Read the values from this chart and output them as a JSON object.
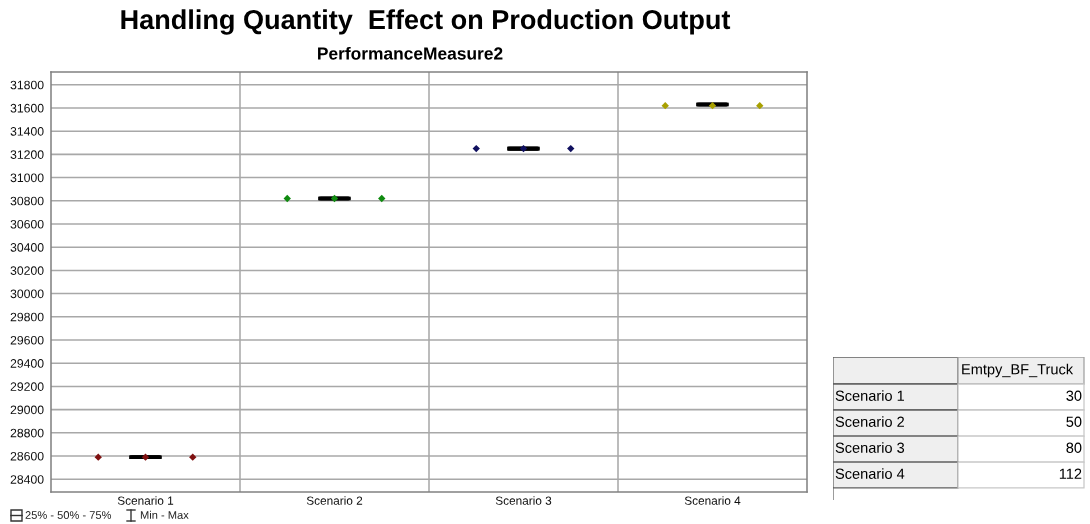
{
  "chart_data": [
    {
      "type": "box",
      "title": "Handling Quantity  Effect on Production Output",
      "subtitle": "PerformanceMeasure2",
      "categories": [
        "Scenario 1",
        "Scenario 2",
        "Scenario 3",
        "Scenario 4"
      ],
      "series": [
        {
          "type": "box",
          "color": "#000000",
          "boxes": [
            {
              "low": 28590,
              "q1": 28590,
              "median": 28590,
              "q3": 28590,
              "high": 28590
            },
            {
              "low": 30820,
              "q1": 30820,
              "median": 30820,
              "q3": 30820,
              "high": 30820
            },
            {
              "low": 31250,
              "q1": 31250,
              "median": 31250,
              "q3": 31250,
              "high": 31250
            },
            {
              "low": 31630,
              "q1": 31630,
              "median": 31630,
              "q3": 31630,
              "high": 31630
            }
          ]
        },
        {
          "type": "scatter",
          "values": [
            28590,
            30820,
            31250,
            31620
          ],
          "colors": [
            "#7f1010",
            "#0f8a0f",
            "#10105f",
            "#a8a000"
          ]
        },
        {
          "type": "scatter",
          "values": [
            28590,
            30820,
            31250,
            31620
          ],
          "colors": [
            "#7f1010",
            "#0f8a0f",
            "#10105f",
            "#a8a000"
          ]
        },
        {
          "type": "scatter",
          "values": [
            28590,
            30820,
            31250,
            31620
          ],
          "colors": [
            "#7f1010",
            "#0f8a0f",
            "#10105f",
            "#a8a000"
          ]
        }
      ],
      "marker": "diamond",
      "ylim": [
        28290,
        31910
      ],
      "yticks": [
        28400,
        28600,
        28800,
        29000,
        29200,
        29400,
        29600,
        29800,
        30000,
        30200,
        30400,
        30600,
        30800,
        31000,
        31200,
        31400,
        31600,
        31800
      ],
      "grid": true,
      "annotations": [
        "25% - 50% - 75%",
        "Min - Max"
      ]
    },
    {
      "type": "other",
      "categories": [
        "Scenario 1",
        "Scenario 2",
        "Scenario 3",
        "Scenario 4"
      ],
      "series": [
        {
          "name": "Emtpy_BF_Truck",
          "values": [
            30,
            50,
            80,
            112
          ]
        }
      ],
      "data_labels": true
    }
  ]
}
